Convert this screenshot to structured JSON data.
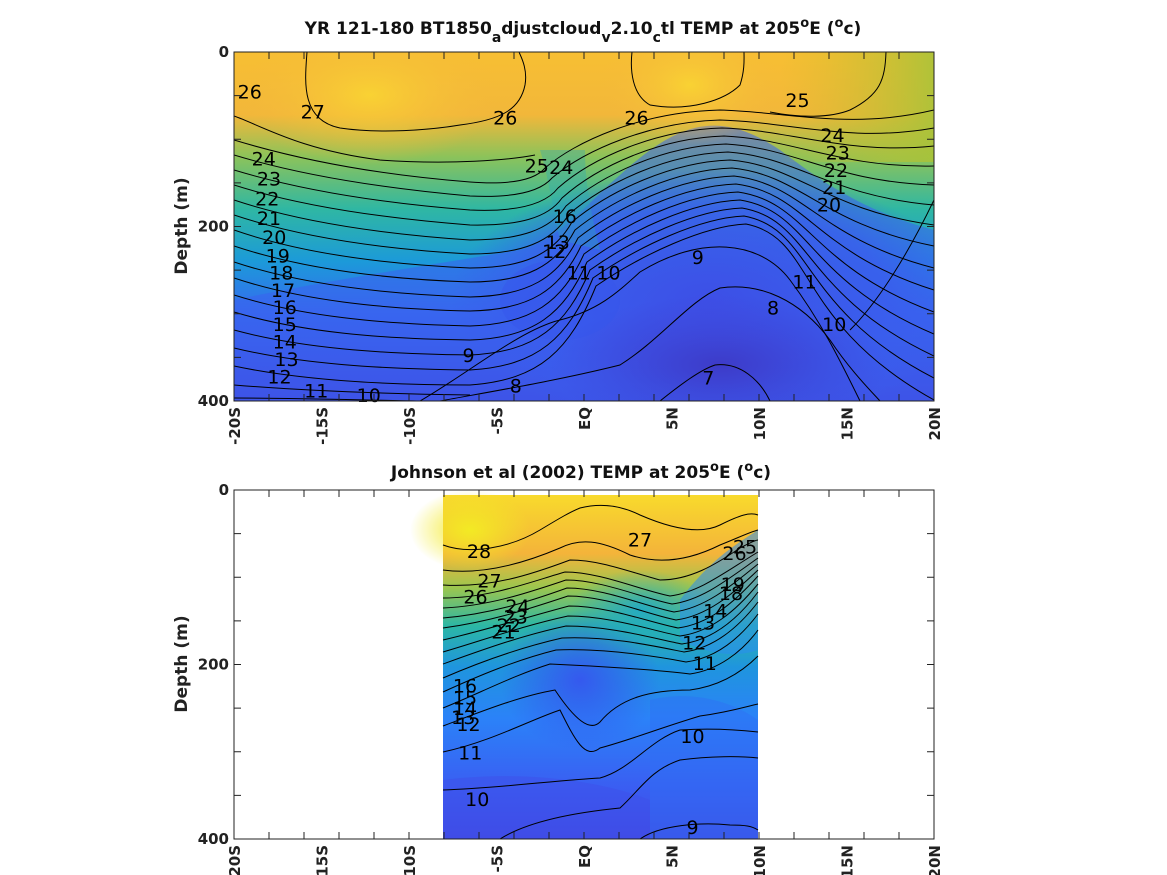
{
  "chart_data": [
    {
      "type": "contour",
      "title": "YR 121-180 BT1850_adjustcloud_v2.10_ctl TEMP at 205°E (°c)",
      "title_parts": {
        "pre": "YR 121-180 BT1850",
        "sub1": "a",
        "mid1": "djustcloud",
        "sub2": "v",
        "mid2": "2.10",
        "sub3": "c",
        "mid3": "tl TEMP at 205",
        "sup1": "o",
        "mid4": "E (",
        "sup2": "o",
        "post": "c)"
      },
      "ylabel": "Depth (m)",
      "xlim": [
        -20,
        20
      ],
      "ylim": [
        0,
        400
      ],
      "y_reversed": true,
      "colormap": "parula",
      "x_ticks": [
        -20,
        -15,
        -10,
        -5,
        0,
        5,
        10,
        15,
        20
      ],
      "x_tick_labels": [
        "-20S",
        "-15S",
        "-10S",
        "-5S",
        "EQ",
        "5N",
        "10N",
        "15N",
        "20N"
      ],
      "y_ticks": [
        0,
        200,
        400
      ],
      "y_tick_labels": [
        "0",
        "200",
        "400"
      ],
      "data_range": {
        "x": [
          -20,
          20
        ],
        "y": [
          5,
          400
        ]
      },
      "contour_labels": [
        {
          "text": "26",
          "x": -19.1,
          "y": 45
        },
        {
          "text": "27",
          "x": -15.5,
          "y": 68
        },
        {
          "text": "26",
          "x": -4.5,
          "y": 75
        },
        {
          "text": "26",
          "x": 3.0,
          "y": 75
        },
        {
          "text": "25",
          "x": 12.2,
          "y": 55
        },
        {
          "text": "24",
          "x": 14.2,
          "y": 95
        },
        {
          "text": "23",
          "x": 14.5,
          "y": 115
        },
        {
          "text": "22",
          "x": 14.4,
          "y": 135
        },
        {
          "text": "21",
          "x": 14.3,
          "y": 155
        },
        {
          "text": "20",
          "x": 14.0,
          "y": 175
        },
        {
          "text": "25",
          "x": -2.7,
          "y": 130
        },
        {
          "text": "24",
          "x": -1.3,
          "y": 132
        },
        {
          "text": "16",
          "x": -1.1,
          "y": 188
        },
        {
          "text": "13",
          "x": -1.5,
          "y": 218
        },
        {
          "text": "12",
          "x": -1.7,
          "y": 228
        },
        {
          "text": "24",
          "x": -18.3,
          "y": 122
        },
        {
          "text": "23",
          "x": -18.0,
          "y": 145
        },
        {
          "text": "22",
          "x": -18.1,
          "y": 168
        },
        {
          "text": "21",
          "x": -18.0,
          "y": 190
        },
        {
          "text": "20",
          "x": -17.7,
          "y": 212
        },
        {
          "text": "19",
          "x": -17.5,
          "y": 233
        },
        {
          "text": "18",
          "x": -17.3,
          "y": 253
        },
        {
          "text": "17",
          "x": -17.2,
          "y": 273
        },
        {
          "text": "16",
          "x": -17.1,
          "y": 292
        },
        {
          "text": "15",
          "x": -17.1,
          "y": 312
        },
        {
          "text": "14",
          "x": -17.1,
          "y": 332
        },
        {
          "text": "13",
          "x": -17.0,
          "y": 352
        },
        {
          "text": "12",
          "x": -17.4,
          "y": 372
        },
        {
          "text": "11",
          "x": -15.3,
          "y": 388
        },
        {
          "text": "10",
          "x": -12.3,
          "y": 393
        },
        {
          "text": "9",
          "x": -6.6,
          "y": 347
        },
        {
          "text": "8",
          "x": -3.9,
          "y": 382
        },
        {
          "text": "7",
          "x": 7.1,
          "y": 373
        },
        {
          "text": "11",
          "x": -0.3,
          "y": 253
        },
        {
          "text": "10",
          "x": 1.4,
          "y": 253
        },
        {
          "text": "9",
          "x": 6.5,
          "y": 235
        },
        {
          "text": "8",
          "x": 10.8,
          "y": 293
        },
        {
          "text": "11",
          "x": 12.6,
          "y": 263
        },
        {
          "text": "10",
          "x": 14.3,
          "y": 312
        }
      ]
    },
    {
      "type": "contour",
      "title": "Johnson et al (2002) TEMP at 205°E (°c)",
      "title_parts": {
        "pre": "Johnson et al (2002) TEMP at 205",
        "sup1": "o",
        "mid": "E (",
        "sup2": "o",
        "post": "c)"
      },
      "ylabel": "Depth (m)",
      "xlim": [
        -20,
        20
      ],
      "ylim": [
        0,
        400
      ],
      "y_reversed": true,
      "colormap": "parula",
      "x_ticks": [
        -20,
        -15,
        -10,
        -5,
        0,
        5,
        10,
        15,
        20
      ],
      "x_tick_labels": [
        "-20S",
        "-15S",
        "-10S",
        "-5S",
        "EQ",
        "5N",
        "10N",
        "15N",
        "20N"
      ],
      "y_ticks": [
        0,
        200,
        400
      ],
      "y_tick_labels": [
        "0",
        "200",
        "400"
      ],
      "data_range": {
        "x": [
          -8,
          10
        ],
        "y": [
          5,
          400
        ]
      },
      "contour_labels": [
        {
          "text": "28",
          "x": -6.0,
          "y": 70
        },
        {
          "text": "27",
          "x": -5.4,
          "y": 104
        },
        {
          "text": "26",
          "x": -6.2,
          "y": 122
        },
        {
          "text": "27",
          "x": 3.2,
          "y": 57
        },
        {
          "text": "26",
          "x": 8.6,
          "y": 72
        },
        {
          "text": "25",
          "x": 9.2,
          "y": 65
        },
        {
          "text": "24",
          "x": -3.8,
          "y": 133
        },
        {
          "text": "23",
          "x": -3.9,
          "y": 145
        },
        {
          "text": "22",
          "x": -4.3,
          "y": 155
        },
        {
          "text": "21",
          "x": -4.6,
          "y": 162
        },
        {
          "text": "19",
          "x": 8.5,
          "y": 108
        },
        {
          "text": "18",
          "x": 8.4,
          "y": 118
        },
        {
          "text": "14",
          "x": 7.5,
          "y": 138
        },
        {
          "text": "13",
          "x": 6.8,
          "y": 152
        },
        {
          "text": "12",
          "x": 6.3,
          "y": 175
        },
        {
          "text": "11",
          "x": 6.9,
          "y": 198
        },
        {
          "text": "16",
          "x": -6.8,
          "y": 224
        },
        {
          "text": "15",
          "x": -6.8,
          "y": 238
        },
        {
          "text": "14",
          "x": -6.8,
          "y": 250
        },
        {
          "text": "13",
          "x": -6.9,
          "y": 260
        },
        {
          "text": "12",
          "x": -6.6,
          "y": 268
        },
        {
          "text": "11",
          "x": -6.5,
          "y": 301
        },
        {
          "text": "10",
          "x": 6.2,
          "y": 282
        },
        {
          "text": "10",
          "x": -6.1,
          "y": 354
        },
        {
          "text": "9",
          "x": 6.2,
          "y": 386
        }
      ]
    }
  ]
}
